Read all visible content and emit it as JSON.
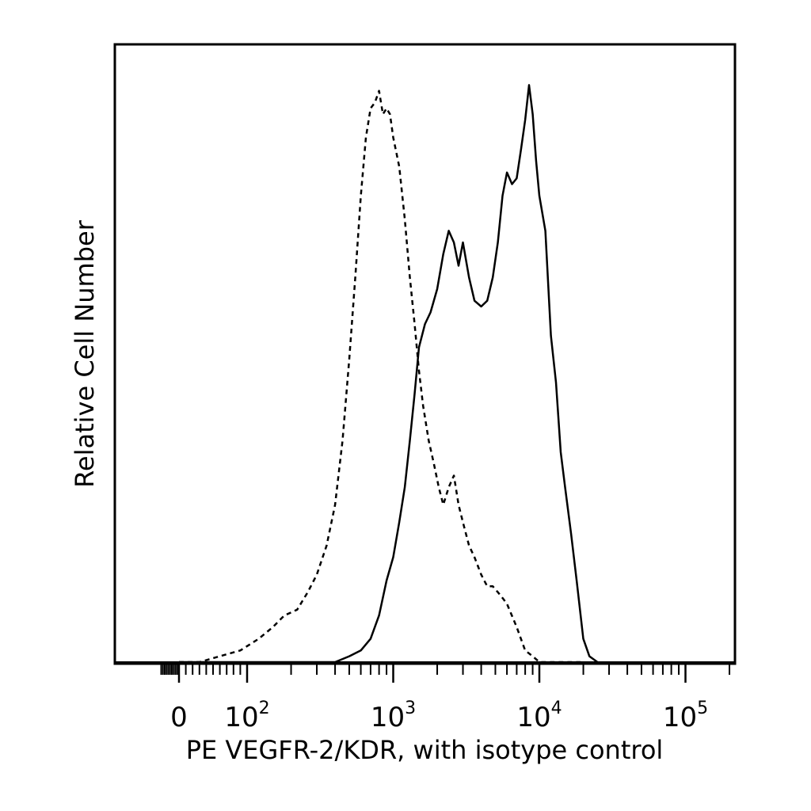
{
  "chart_data": {
    "type": "line",
    "title": "",
    "xlabel": "PE VEGFR-2/KDR, with isotype control",
    "ylabel": "Relative Cell Number",
    "x_scale": "biexponential",
    "xlim": [
      -60,
      250000
    ],
    "ylim": [
      0,
      1
    ],
    "grid": false,
    "legend": "none",
    "x_ticks": [
      {
        "value": 0,
        "base": "0",
        "exp": ""
      },
      {
        "value": 100,
        "base": "10",
        "exp": "2"
      },
      {
        "value": 1000,
        "base": "10",
        "exp": "3"
      },
      {
        "value": 10000,
        "base": "10",
        "exp": "4"
      },
      {
        "value": 100000,
        "base": "10",
        "exp": "5"
      }
    ],
    "series": [
      {
        "line_style": "dashed",
        "color": "#000000",
        "x": [
          0,
          30,
          60,
          90,
          120,
          150,
          180,
          220,
          260,
          300,
          350,
          400,
          450,
          500,
          550,
          600,
          650,
          700,
          750,
          800,
          850,
          900,
          950,
          1000,
          1100,
          1200,
          1300,
          1400,
          1500,
          1600,
          1750,
          1900,
          2050,
          2200,
          2400,
          2600,
          2800,
          3000,
          3300,
          3600,
          4000,
          4400,
          4800,
          5200,
          5600,
          6000,
          7000,
          8000,
          9000,
          10000,
          12000,
          15000,
          20000
        ],
        "values": [
          0.0,
          0.0,
          0.01,
          0.02,
          0.04,
          0.06,
          0.08,
          0.09,
          0.12,
          0.15,
          0.2,
          0.27,
          0.38,
          0.52,
          0.66,
          0.8,
          0.9,
          0.95,
          0.96,
          0.98,
          0.94,
          0.95,
          0.94,
          0.9,
          0.85,
          0.76,
          0.66,
          0.58,
          0.5,
          0.44,
          0.38,
          0.34,
          0.3,
          0.27,
          0.3,
          0.32,
          0.27,
          0.24,
          0.2,
          0.18,
          0.15,
          0.13,
          0.13,
          0.12,
          0.11,
          0.1,
          0.06,
          0.02,
          0.01,
          0.0,
          0.0,
          0.0,
          0.0
        ]
      },
      {
        "line_style": "solid",
        "color": "#000000",
        "x": [
          0,
          100,
          200,
          300,
          400,
          500,
          600,
          700,
          800,
          900,
          1000,
          1100,
          1200,
          1300,
          1400,
          1500,
          1650,
          1800,
          2000,
          2200,
          2400,
          2600,
          2800,
          3000,
          3300,
          3600,
          4000,
          4400,
          4800,
          5200,
          5600,
          6000,
          6500,
          7000,
          7500,
          8000,
          8500,
          9000,
          9500,
          10000,
          11000,
          12000,
          13000,
          14000,
          15000,
          16500,
          18000,
          20000,
          22000,
          25000
        ],
        "values": [
          0.0,
          0.0,
          0.0,
          0.0,
          0.0,
          0.01,
          0.02,
          0.04,
          0.08,
          0.14,
          0.18,
          0.24,
          0.3,
          0.38,
          0.46,
          0.54,
          0.58,
          0.6,
          0.64,
          0.7,
          0.74,
          0.72,
          0.68,
          0.72,
          0.66,
          0.62,
          0.61,
          0.62,
          0.66,
          0.72,
          0.8,
          0.84,
          0.82,
          0.83,
          0.88,
          0.93,
          0.99,
          0.94,
          0.86,
          0.8,
          0.74,
          0.56,
          0.48,
          0.36,
          0.3,
          0.22,
          0.14,
          0.04,
          0.01,
          0.0
        ]
      }
    ]
  }
}
